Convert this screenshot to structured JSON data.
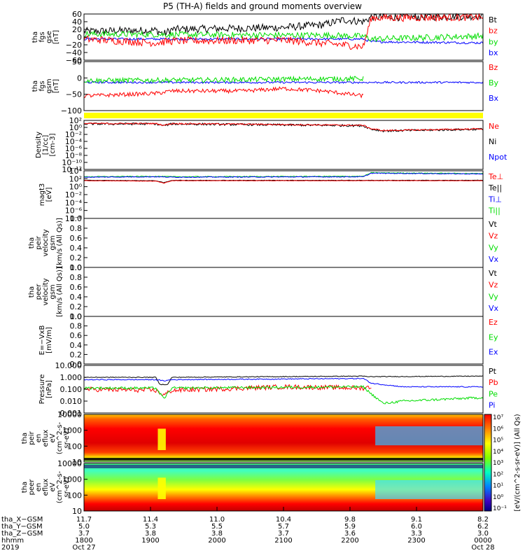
{
  "title": "P5 (TH-A) fields and ground moments overview",
  "colors": {
    "black": "#000000",
    "red": "#ff0000",
    "green": "#00dd00",
    "blue": "#0000ff",
    "yellow": "#ffff00"
  },
  "chart_data": [
    {
      "id": "fgs_gse",
      "type": "line",
      "ylabel": [
        "tha",
        "fgs",
        "gse",
        "[nT]"
      ],
      "ylim": [
        -60,
        60
      ],
      "yticks": [
        "60",
        "40",
        "20",
        "0",
        "−20",
        "−40",
        "−60"
      ],
      "legend": [
        {
          "label": "Bt",
          "color": "#000000"
        },
        {
          "label": "bz",
          "color": "#ff0000"
        },
        {
          "label": "by",
          "color": "#00dd00"
        },
        {
          "label": "bx",
          "color": "#0000ff"
        }
      ],
      "series": [
        {
          "color": "#000000",
          "x": [
            0,
            0.18,
            0.2,
            0.22,
            0.5,
            0.6,
            0.65,
            0.7,
            0.72,
            0.8,
            1.0
          ],
          "y": [
            15,
            18,
            8,
            20,
            25,
            32,
            45,
            40,
            52,
            52,
            55
          ],
          "noise": 10
        },
        {
          "color": "#0000ff",
          "x": [
            0,
            0.2,
            0.5,
            0.7,
            0.72,
            1.0
          ],
          "y": [
            -5,
            -5,
            -5,
            -5,
            -12,
            -15
          ],
          "noise": 3
        },
        {
          "color": "#00dd00",
          "x": [
            0,
            0.3,
            0.5,
            0.6,
            0.7,
            0.72,
            1.0
          ],
          "y": [
            8,
            6,
            5,
            5,
            2,
            -5,
            3
          ],
          "noise": 8
        },
        {
          "color": "#ff0000",
          "x": [
            0,
            0.18,
            0.22,
            0.5,
            0.65,
            0.7,
            0.72,
            1.0
          ],
          "y": [
            -5,
            -15,
            -10,
            -8,
            -20,
            -25,
            50,
            52
          ],
          "noise": 10
        }
      ]
    },
    {
      "id": "fgs_gsm",
      "type": "line",
      "ylabel": [
        "tha",
        "fgs",
        "gsm",
        "[nT]"
      ],
      "ylim": [
        -120,
        80
      ],
      "yticks": [
        "50",
        "0",
        "−50",
        "−100"
      ],
      "legend": [
        {
          "label": "Bz",
          "color": "#ff0000"
        },
        {
          "label": "By",
          "color": "#00dd00"
        },
        {
          "label": "Bx",
          "color": "#0000ff"
        }
      ],
      "series": [
        {
          "color": "#0000ff",
          "x": [
            0,
            0.7,
            1.0
          ],
          "y": [
            -5,
            -5,
            -5
          ],
          "noise": 4
        },
        {
          "color": "#00dd00",
          "x": [
            0,
            0.3,
            0.6,
            0.7
          ],
          "y": [
            3,
            5,
            10,
            10
          ],
          "noise": 10
        },
        {
          "color": "#ff0000",
          "x": [
            0,
            0.18,
            0.22,
            0.4,
            0.5,
            0.6,
            0.7
          ],
          "y": [
            -60,
            -50,
            -40,
            -40,
            -30,
            -40,
            -60
          ],
          "noise": 8
        }
      ]
    },
    {
      "id": "density",
      "type": "line",
      "log": true,
      "ylabel": [
        "Density",
        "[1/cc]",
        "[cm-3]"
      ],
      "ylim": [
        -12,
        2
      ],
      "yticks": [
        "10²",
        "10⁰",
        "10⁻²",
        "10⁻⁴",
        "10⁻⁶",
        "10⁻⁸",
        "10⁻¹⁰",
        "10⁻¹²"
      ],
      "legend": [
        {
          "label": "Ne",
          "color": "#ff0000"
        },
        {
          "label": "Ni",
          "color": "#000000"
        },
        {
          "label": "Npot",
          "color": "#0000ff"
        }
      ],
      "series": [
        {
          "color": "#000000",
          "x": [
            0,
            0.18,
            0.2,
            0.22,
            0.7,
            0.72,
            0.75,
            1.0
          ],
          "y": [
            1,
            1,
            0.5,
            1,
            0.5,
            -0.5,
            -1,
            -0.5
          ],
          "noise": 0.3
        },
        {
          "color": "#ff0000",
          "x": [
            0,
            0.18,
            0.2,
            0.22,
            0.7,
            0.72,
            0.75,
            1.0
          ],
          "y": [
            1.1,
            1.1,
            0.6,
            1.1,
            0.6,
            -0.4,
            -0.9,
            -0.4
          ],
          "noise": 0.2
        }
      ]
    },
    {
      "id": "temperature",
      "type": "line",
      "log": true,
      "ylabel": [
        "magt3",
        "[eV]"
      ],
      "ylim": [
        -8,
        4
      ],
      "yticks": [
        "10⁴",
        "10²",
        "10⁰",
        "10⁻²",
        "10⁻⁴",
        "10⁻⁶",
        "10⁻⁸"
      ],
      "legend": [
        {
          "label": "Te⊥",
          "color": "#ff0000"
        },
        {
          "label": "Te||",
          "color": "#000000"
        },
        {
          "label": "Ti⊥",
          "color": "#0000ff"
        },
        {
          "label": "Ti||",
          "color": "#00dd00"
        }
      ],
      "series": [
        {
          "color": "#00dd00",
          "x": [
            0,
            0.18,
            0.22,
            0.7,
            0.72,
            1.0
          ],
          "y": [
            2.5,
            2.6,
            2.5,
            2.6,
            3.5,
            3.3
          ],
          "noise": 0.1
        },
        {
          "color": "#0000ff",
          "x": [
            0,
            0.18,
            0.22,
            0.7,
            0.72,
            1.0
          ],
          "y": [
            2.4,
            2.5,
            2.4,
            2.5,
            3.4,
            3.2
          ],
          "noise": 0.1
        },
        {
          "color": "#000000",
          "x": [
            0,
            0.18,
            0.2,
            0.22,
            1.0
          ],
          "y": [
            1.6,
            1.5,
            1.0,
            1.6,
            1.6
          ],
          "noise": 0.05
        },
        {
          "color": "#ff0000",
          "x": [
            0,
            0.18,
            0.2,
            0.22,
            1.0
          ],
          "y": [
            1.5,
            1.4,
            0.9,
            1.5,
            1.5
          ],
          "noise": 0.05
        }
      ]
    },
    {
      "id": "peir_velocity",
      "type": "line",
      "ylabel": [
        "tha",
        "peir",
        "velocity",
        "gsm",
        "[km/s (All Qs)]"
      ],
      "ylim": [
        0,
        1
      ],
      "yticks": [
        "1.0",
        "0.8",
        "0.6",
        "0.4",
        "0.2",
        "0.0"
      ],
      "legend": [
        {
          "label": "Vt",
          "color": "#000000"
        },
        {
          "label": "Vz",
          "color": "#ff0000"
        },
        {
          "label": "Vy",
          "color": "#00dd00"
        },
        {
          "label": "Vx",
          "color": "#0000ff"
        }
      ],
      "series": []
    },
    {
      "id": "peer_velocity",
      "type": "line",
      "ylabel": [
        "tha",
        "peer",
        "velocity",
        "gsm",
        "[km/s (All Qs)]"
      ],
      "ylim": [
        0,
        1
      ],
      "yticks": [
        "1.0",
        "0.8",
        "0.6",
        "0.4",
        "0.2",
        "0.0"
      ],
      "legend": [
        {
          "label": "Vt",
          "color": "#000000"
        },
        {
          "label": "Vz",
          "color": "#ff0000"
        },
        {
          "label": "Vy",
          "color": "#00dd00"
        },
        {
          "label": "Vx",
          "color": "#0000ff"
        }
      ],
      "series": []
    },
    {
      "id": "efield",
      "type": "line",
      "ylabel": [
        "E=−VxB",
        "[mV/m]"
      ],
      "ylim": [
        0,
        1
      ],
      "yticks": [
        "1.0",
        "0.8",
        "0.6",
        "0.4",
        "0.2",
        "0.0"
      ],
      "legend": [
        {
          "label": "Ez",
          "color": "#ff0000"
        },
        {
          "label": "Ey",
          "color": "#00dd00"
        },
        {
          "label": "Ex",
          "color": "#0000ff"
        }
      ],
      "series": []
    },
    {
      "id": "pressure",
      "type": "line",
      "log": true,
      "ylabel": [
        "Pressure",
        "[nPa]"
      ],
      "ylim": [
        -3,
        1
      ],
      "yticks": [
        "10.000",
        "1.000",
        "0.100",
        "0.010",
        "0.001"
      ],
      "legend": [
        {
          "label": "Pt",
          "color": "#000000"
        },
        {
          "label": "Pb",
          "color": "#ff0000"
        },
        {
          "label": "Pe",
          "color": "#00dd00"
        },
        {
          "label": "Pi",
          "color": "#0000ff"
        }
      ],
      "series": [
        {
          "color": "#000000",
          "x": [
            0,
            0.18,
            0.19,
            0.21,
            0.22,
            0.7,
            0.71,
            1.0
          ],
          "y": [
            0,
            0,
            -0.6,
            -0.6,
            0,
            0.1,
            0.05,
            0.1
          ],
          "noise": 0.03
        },
        {
          "color": "#0000ff",
          "x": [
            0,
            0.18,
            0.2,
            0.22,
            0.7,
            0.72,
            0.8,
            1.0
          ],
          "y": [
            -0.2,
            -0.2,
            -0.3,
            -0.2,
            -0.1,
            -0.5,
            -0.8,
            -0.8
          ],
          "noise": 0.04
        },
        {
          "color": "#ff0000",
          "x": [
            0,
            0.18,
            0.2,
            0.22,
            0.5,
            0.7,
            0.72
          ],
          "y": [
            -1,
            -1.1,
            -1.5,
            -1.1,
            -0.8,
            -0.9,
            -0.8
          ],
          "noise": 0.2
        },
        {
          "color": "#00dd00",
          "x": [
            0,
            0.18,
            0.2,
            0.22,
            0.7,
            0.72,
            0.75,
            0.8,
            1.0
          ],
          "y": [
            -0.9,
            -0.9,
            -1.8,
            -0.9,
            -0.8,
            -1.4,
            -2.2,
            -2.0,
            -1.7
          ],
          "noise": 0.1
        }
      ]
    },
    {
      "id": "peir_flux",
      "type": "heatmap",
      "ylabel": [
        "tha",
        "peir",
        "en",
        "eflux",
        "eV",
        "(cm^2-s-",
        "sr-eV)"
      ],
      "yticks": [
        "10000",
        "1000",
        "100",
        "10"
      ]
    },
    {
      "id": "peer_flux",
      "type": "heatmap",
      "ylabel": [
        "tha",
        "peer",
        "en",
        "eflux",
        "eV",
        "(cm^2-s-",
        "sr-eV)"
      ],
      "yticks": [
        "10000",
        "1000",
        "100",
        "10"
      ]
    }
  ],
  "colorbar": {
    "ticks": [
      "10⁷",
      "10⁶",
      "10⁵",
      "10⁴",
      "10³",
      "10²",
      "10¹",
      "10⁰",
      "10⁻¹"
    ],
    "label": "[eV/(cm^2-s-sr-eV)] (All Qs)"
  },
  "xaxis": {
    "rows": [
      {
        "label": "tha_X−GSM",
        "values": [
          "11.7",
          "11.4",
          "11.0",
          "10.4",
          "9.8",
          "9.1",
          "8.2"
        ]
      },
      {
        "label": "tha_Y−GSM",
        "values": [
          "5.0",
          "5.3",
          "5.5",
          "5.7",
          "5.9",
          "6.0",
          "6.2"
        ]
      },
      {
        "label": "tha_Z−GSM",
        "values": [
          "3.7",
          "3.8",
          "3.8",
          "3.7",
          "3.6",
          "3.3",
          "3.0"
        ]
      },
      {
        "label": "hhmm",
        "values": [
          "1800",
          "1900",
          "2000",
          "2100",
          "2200",
          "2300",
          "0000"
        ]
      },
      {
        "label": "2019",
        "values": [
          "Oct 27",
          "",
          "",
          "",
          "",
          "",
          "Oct 28"
        ]
      }
    ]
  }
}
